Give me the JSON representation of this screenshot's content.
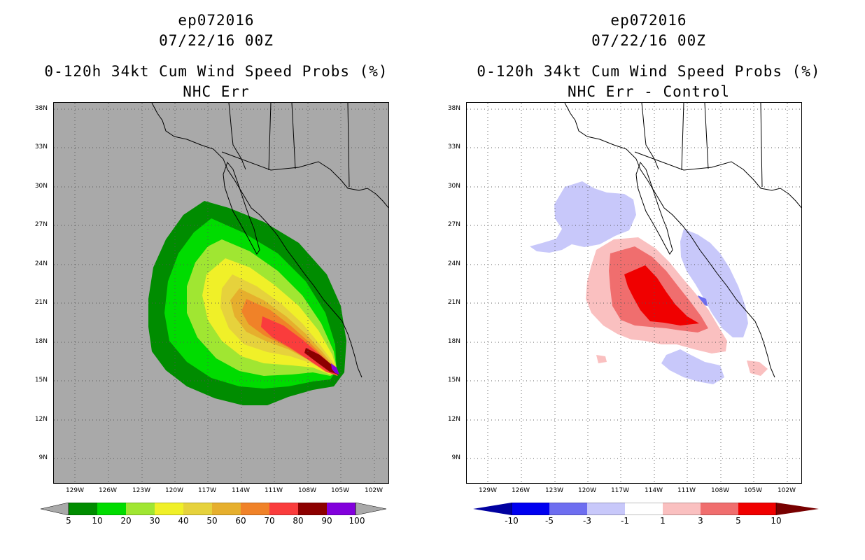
{
  "left": {
    "title_line1": "ep072016",
    "title_line2": "07/22/16 00Z",
    "title_line3": "0-120h 34kt Cum Wind Speed Probs (%)",
    "title_line4": "NHC Err",
    "lat_labels": [
      "38N",
      "33N",
      "30N",
      "27N",
      "24N",
      "21N",
      "18N",
      "15N",
      "12N",
      "9N"
    ],
    "lon_labels": [
      "129W",
      "126W",
      "123W",
      "120W",
      "117W",
      "114W",
      "111W",
      "108W",
      "105W",
      "102W"
    ],
    "colorbar_ticks": [
      "5",
      "10",
      "20",
      "30",
      "40",
      "50",
      "60",
      "70",
      "80",
      "90",
      "100"
    ],
    "colors": [
      "#008c00",
      "#00dc00",
      "#a0e632",
      "#f0f028",
      "#e6d23c",
      "#e6af2d",
      "#f08228",
      "#fa3c3c",
      "#8c0000",
      "#8200dc"
    ],
    "background_color": "#a9a9a9"
  },
  "right": {
    "title_line1": "ep072016",
    "title_line2": "07/22/16 00Z",
    "title_line3": "0-120h 34kt Cum Wind Speed Probs (%)",
    "title_line4": "NHC Err - Control",
    "lat_labels": [
      "38N",
      "33N",
      "30N",
      "27N",
      "24N",
      "21N",
      "18N",
      "15N",
      "12N",
      "9N"
    ],
    "lon_labels": [
      "129W",
      "126W",
      "123W",
      "120W",
      "117W",
      "114W",
      "111W",
      "108W",
      "105W",
      "102W"
    ],
    "colorbar_ticks": [
      "-10",
      "-5",
      "-3",
      "-1",
      "1",
      "3",
      "5",
      "10"
    ],
    "colors": [
      "#0000a0",
      "#0000f0",
      "#6e6ef0",
      "#c8c8fa",
      "#ffffff",
      "#fac0c0",
      "#f06e6e",
      "#f00000",
      "#780000"
    ]
  }
}
